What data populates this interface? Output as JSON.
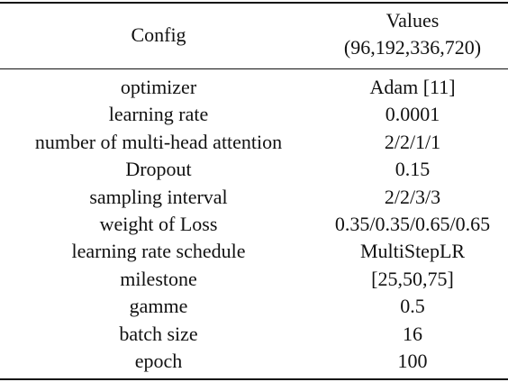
{
  "table": {
    "header": {
      "config": "Config",
      "values_line1": "Values",
      "values_line2": "(96,192,336,720)"
    },
    "rows": [
      {
        "config": "optimizer",
        "value": "Adam [11]"
      },
      {
        "config": "learning rate",
        "value": "0.0001"
      },
      {
        "config": "number of multi-head attention",
        "value": "2/2/1/1"
      },
      {
        "config": "Dropout",
        "value": "0.15"
      },
      {
        "config": "sampling interval",
        "value": "2/2/3/3"
      },
      {
        "config": "weight of Loss",
        "value": "0.35/0.35/0.65/0.65"
      },
      {
        "config": "learning rate schedule",
        "value": "MultiStepLR"
      },
      {
        "config": "milestone",
        "value": "[25,50,75]"
      },
      {
        "config": "gamme",
        "value": "0.5"
      },
      {
        "config": "batch size",
        "value": "16"
      },
      {
        "config": "epoch",
        "value": "100"
      }
    ]
  }
}
